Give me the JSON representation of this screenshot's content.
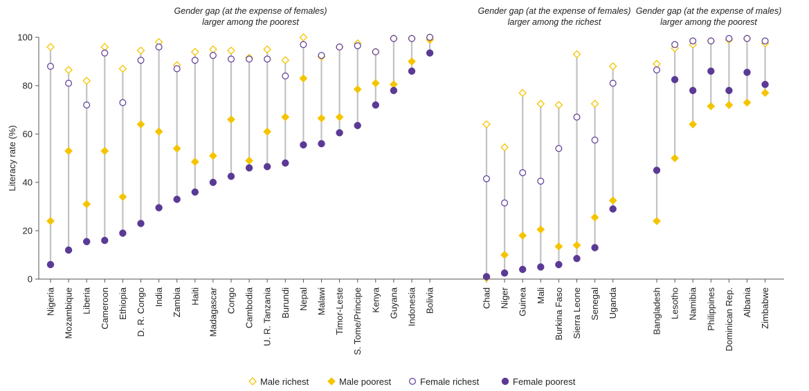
{
  "chart_data": {
    "type": "scatter",
    "ylabel": "Literacy rate (%)",
    "ylim": [
      0,
      100
    ],
    "yticks": [
      "0",
      "20",
      "40",
      "60",
      "80",
      "100"
    ],
    "grid": false,
    "legend_position": "bottom",
    "series": [
      {
        "key": "male_richest",
        "name": "Male richest",
        "marker": "diamond-open",
        "color": "#F5C400"
      },
      {
        "key": "male_poorest",
        "name": "Male poorest",
        "marker": "diamond-filled",
        "color": "#F5C400"
      },
      {
        "key": "female_richest",
        "name": "Female richest",
        "marker": "circle-open",
        "color": "#5B3A96"
      },
      {
        "key": "female_poorest",
        "name": "Female poorest",
        "marker": "circle-filled",
        "color": "#5B3A96"
      }
    ],
    "groups": [
      {
        "note": [
          "Gender gap (at the expense of females)",
          "larger among the poorest"
        ],
        "countries": [
          {
            "name": "Nigeria",
            "male_richest": 96,
            "male_poorest": 24,
            "female_richest": 88,
            "female_poorest": 6
          },
          {
            "name": "Mozambique",
            "male_richest": 86.5,
            "male_poorest": 53,
            "female_richest": 81,
            "female_poorest": 12
          },
          {
            "name": "Liberia",
            "male_richest": 82,
            "male_poorest": 31,
            "female_richest": 72,
            "female_poorest": 15.5
          },
          {
            "name": "Cameroon",
            "male_richest": 96,
            "male_poorest": 53,
            "female_richest": 93.5,
            "female_poorest": 16
          },
          {
            "name": "Ethiopia",
            "male_richest": 87,
            "male_poorest": 34,
            "female_richest": 73,
            "female_poorest": 19
          },
          {
            "name": "D. R. Congo",
            "male_richest": 94.5,
            "male_poorest": 64,
            "female_richest": 90.5,
            "female_poorest": 23
          },
          {
            "name": "India",
            "male_richest": 98,
            "male_poorest": 61,
            "female_richest": 96,
            "female_poorest": 29.5
          },
          {
            "name": "Zambia",
            "male_richest": 88.5,
            "male_poorest": 54,
            "female_richest": 87,
            "female_poorest": 33
          },
          {
            "name": "Haiti",
            "male_richest": 94,
            "male_poorest": 48.5,
            "female_richest": 90.5,
            "female_poorest": 36
          },
          {
            "name": "Madagascar",
            "male_richest": 95,
            "male_poorest": 51,
            "female_richest": 92.5,
            "female_poorest": 40
          },
          {
            "name": "Congo",
            "male_richest": 94.5,
            "male_poorest": 66,
            "female_richest": 91,
            "female_poorest": 42.5
          },
          {
            "name": "Cambodia",
            "male_richest": 91.5,
            "male_poorest": 49,
            "female_richest": 91,
            "female_poorest": 46
          },
          {
            "name": "U. R. Tanzania",
            "male_richest": 95,
            "male_poorest": 61,
            "female_richest": 91,
            "female_poorest": 46.5
          },
          {
            "name": "Burundi",
            "male_richest": 90.5,
            "male_poorest": 67,
            "female_richest": 84,
            "female_poorest": 48
          },
          {
            "name": "Nepal",
            "male_richest": 100,
            "male_poorest": 83,
            "female_richest": 97,
            "female_poorest": 55.5
          },
          {
            "name": "Malawi",
            "male_richest": 92,
            "male_poorest": 66.5,
            "female_richest": 92.5,
            "female_poorest": 56
          },
          {
            "name": "Timor-Leste",
            "male_richest": 96,
            "male_poorest": 67,
            "female_richest": 96,
            "female_poorest": 60.5
          },
          {
            "name": "S. Tome/Principe",
            "male_richest": 97.5,
            "male_poorest": 78.5,
            "female_richest": 96.5,
            "female_poorest": 63.5
          },
          {
            "name": "Kenya",
            "male_richest": 94,
            "male_poorest": 81,
            "female_richest": 94,
            "female_poorest": 72
          },
          {
            "name": "Guyana",
            "male_richest": 99.5,
            "male_poorest": 80.5,
            "female_richest": 99.5,
            "female_poorest": 78
          },
          {
            "name": "Indonesia",
            "male_richest": 99.5,
            "male_poorest": 90,
            "female_richest": 99.5,
            "female_poorest": 86
          },
          {
            "name": "Bolivia",
            "male_richest": 100,
            "male_poorest": 99,
            "female_richest": 100,
            "female_poorest": 93.5
          }
        ]
      },
      {
        "note": [
          "Gender gap (at the expense of females)",
          "larger among the richest"
        ],
        "countries": [
          {
            "name": "Chad",
            "male_richest": 64,
            "male_poorest": 0.5,
            "female_richest": 41.5,
            "female_poorest": 1
          },
          {
            "name": "Niger",
            "male_richest": 54.5,
            "male_poorest": 10,
            "female_richest": 31.5,
            "female_poorest": 2.5
          },
          {
            "name": "Guinea",
            "male_richest": 77,
            "male_poorest": 18,
            "female_richest": 44,
            "female_poorest": 4
          },
          {
            "name": "Mali",
            "male_richest": 72.5,
            "male_poorest": 20.5,
            "female_richest": 40.5,
            "female_poorest": 5
          },
          {
            "name": "Burkina Faso",
            "male_richest": 72,
            "male_poorest": 13.5,
            "female_richest": 54,
            "female_poorest": 6
          },
          {
            "name": "Sierra Leone",
            "male_richest": 93,
            "male_poorest": 14,
            "female_richest": 67,
            "female_poorest": 8.5
          },
          {
            "name": "Senegal",
            "male_richest": 72.5,
            "male_poorest": 25.5,
            "female_richest": 57.5,
            "female_poorest": 13
          },
          {
            "name": "Uganda",
            "male_richest": 88,
            "male_poorest": 32.5,
            "female_richest": 81,
            "female_poorest": 29
          }
        ]
      },
      {
        "note": [
          "Gender gap (at the expense of males)",
          "larger among the poorest"
        ],
        "countries": [
          {
            "name": "Bangladesh",
            "male_richest": 89,
            "male_poorest": 24,
            "female_richest": 86.5,
            "female_poorest": 45
          },
          {
            "name": "Lesotho",
            "male_richest": 95.5,
            "male_poorest": 50,
            "female_richest": 97,
            "female_poorest": 82.5
          },
          {
            "name": "Namibia",
            "male_richest": 97,
            "male_poorest": 64,
            "female_richest": 98.5,
            "female_poorest": 78
          },
          {
            "name": "Philippines",
            "male_richest": 98.5,
            "male_poorest": 71.5,
            "female_richest": 98.5,
            "female_poorest": 86
          },
          {
            "name": "Dominican Rep.",
            "male_richest": 99,
            "male_poorest": 72,
            "female_richest": 99.5,
            "female_poorest": 78
          },
          {
            "name": "Albania",
            "male_richest": 99.5,
            "male_poorest": 73,
            "female_richest": 99.5,
            "female_poorest": 85.5
          },
          {
            "name": "Zimbabwe",
            "male_richest": 97.5,
            "male_poorest": 77,
            "female_richest": 98.5,
            "female_poorest": 80.5
          }
        ]
      }
    ]
  }
}
